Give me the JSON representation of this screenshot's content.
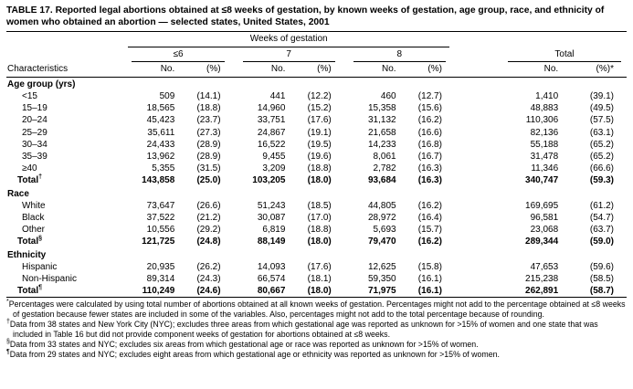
{
  "title": {
    "label": "TABLE 17.",
    "text": "Reported legal abortions obtained at ≤8 weeks of gestation, by known weeks of gestation, age group, race, and ethnicity of women who obtained an abortion — selected states, United States, 2001"
  },
  "header": {
    "weeks_group": "Weeks of gestation",
    "characteristics": "Characteristics",
    "col_groups": [
      "≤6",
      "7",
      "8"
    ],
    "total_label": "Total",
    "no_label": "No.",
    "pct_label": "(%)",
    "total_pct_label": "(%)*"
  },
  "sections": [
    {
      "name": "Age group (yrs)",
      "rows": [
        {
          "label": "<15",
          "sup": "",
          "total": false,
          "cells": [
            "509",
            "(14.1)",
            "441",
            "(12.2)",
            "460",
            "(12.7)",
            "1,410",
            "(39.1)"
          ]
        },
        {
          "label": "15–19",
          "sup": "",
          "total": false,
          "cells": [
            "18,565",
            "(18.8)",
            "14,960",
            "(15.2)",
            "15,358",
            "(15.6)",
            "48,883",
            "(49.5)"
          ]
        },
        {
          "label": "20–24",
          "sup": "",
          "total": false,
          "cells": [
            "45,423",
            "(23.7)",
            "33,751",
            "(17.6)",
            "31,132",
            "(16.2)",
            "110,306",
            "(57.5)"
          ]
        },
        {
          "label": "25–29",
          "sup": "",
          "total": false,
          "cells": [
            "35,611",
            "(27.3)",
            "24,867",
            "(19.1)",
            "21,658",
            "(16.6)",
            "82,136",
            "(63.1)"
          ]
        },
        {
          "label": "30–34",
          "sup": "",
          "total": false,
          "cells": [
            "24,433",
            "(28.9)",
            "16,522",
            "(19.5)",
            "14,233",
            "(16.8)",
            "55,188",
            "(65.2)"
          ]
        },
        {
          "label": "35–39",
          "sup": "",
          "total": false,
          "cells": [
            "13,962",
            "(28.9)",
            "9,455",
            "(19.6)",
            "8,061",
            "(16.7)",
            "31,478",
            "(65.2)"
          ]
        },
        {
          "label": "≥40",
          "sup": "",
          "total": false,
          "cells": [
            "5,355",
            "(31.5)",
            "3,209",
            "(18.8)",
            "2,782",
            "(16.3)",
            "11,346",
            "(66.6)"
          ]
        },
        {
          "label": "Total",
          "sup": "†",
          "total": true,
          "cells": [
            "143,858",
            "(25.0)",
            "103,205",
            "(18.0)",
            "93,684",
            "(16.3)",
            "340,747",
            "(59.3)"
          ]
        }
      ]
    },
    {
      "name": "Race",
      "rows": [
        {
          "label": "White",
          "sup": "",
          "total": false,
          "cells": [
            "73,647",
            "(26.6)",
            "51,243",
            "(18.5)",
            "44,805",
            "(16.2)",
            "169,695",
            "(61.2)"
          ]
        },
        {
          "label": "Black",
          "sup": "",
          "total": false,
          "cells": [
            "37,522",
            "(21.2)",
            "30,087",
            "(17.0)",
            "28,972",
            "(16.4)",
            "96,581",
            "(54.7)"
          ]
        },
        {
          "label": "Other",
          "sup": "",
          "total": false,
          "cells": [
            "10,556",
            "(29.2)",
            "6,819",
            "(18.8)",
            "5,693",
            "(15.7)",
            "23,068",
            "(63.7)"
          ]
        },
        {
          "label": "Total",
          "sup": "§",
          "total": true,
          "cells": [
            "121,725",
            "(24.8)",
            "88,149",
            "(18.0)",
            "79,470",
            "(16.2)",
            "289,344",
            "(59.0)"
          ]
        }
      ]
    },
    {
      "name": "Ethnicity",
      "rows": [
        {
          "label": "Hispanic",
          "sup": "",
          "total": false,
          "cells": [
            "20,935",
            "(26.2)",
            "14,093",
            "(17.6)",
            "12,625",
            "(15.8)",
            "47,653",
            "(59.6)"
          ]
        },
        {
          "label": "Non-Hispanic",
          "sup": "",
          "total": false,
          "cells": [
            "89,314",
            "(24.3)",
            "66,574",
            "(18.1)",
            "59,350",
            "(16.1)",
            "215,238",
            "(58.5)"
          ]
        },
        {
          "label": "Total",
          "sup": "¶",
          "total": true,
          "cells": [
            "110,249",
            "(24.6)",
            "80,667",
            "(18.0)",
            "71,975",
            "(16.1)",
            "262,891",
            "(58.7)"
          ]
        }
      ]
    }
  ],
  "footnotes": [
    {
      "marker": "*",
      "text": "Percentages were calculated by using total number of abortions obtained at all known weeks of gestation. Percentages might not add to the percentage obtained at ≤8 weeks of gestation because fewer states are included in some of the variables. Also, percentages might not add to the total percentage because of rounding."
    },
    {
      "marker": "†",
      "text": "Data from 38 states and New York City (NYC); excludes three areas from which gestational age was reported as unknown for >15% of women and one state that was included in Table 16 but did not provide component weeks of gestation for abortions obtained at ≤8 weeks."
    },
    {
      "marker": "§",
      "text": "Data from 33 states and NYC; excludes six areas from which gestational age or race was reported as unknown for >15% of women."
    },
    {
      "marker": "¶",
      "text": "Data from 29 states and NYC; excludes eight areas from which gestational age or ethnicity was reported as unknown for >15% of women."
    }
  ]
}
